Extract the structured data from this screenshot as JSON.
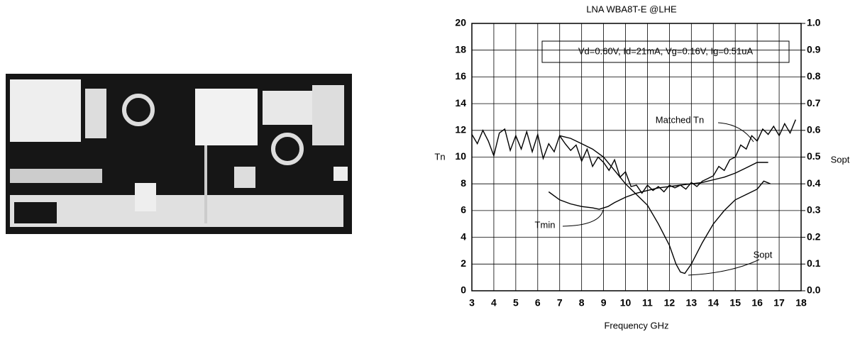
{
  "chart_data": {
    "type": "line",
    "title": "LNA WBA8T-E @LHE",
    "x_label": "Frequency GHz",
    "y_label": "Tn",
    "y2_label": "Sopt",
    "conditions": "Vd=0.60V, Id=21mA, Vg=0.16V, Ig=0.51uA",
    "xlim": [
      3,
      18
    ],
    "xticks": [
      3,
      4,
      5,
      6,
      7,
      8,
      9,
      10,
      11,
      12,
      13,
      14,
      15,
      16,
      17,
      18
    ],
    "ylim": [
      0,
      20
    ],
    "yticks": [
      0,
      2,
      4,
      6,
      8,
      10,
      12,
      14,
      16,
      18,
      20
    ],
    "y2lim": [
      0,
      1
    ],
    "y2ticks": [
      {
        "value": 0,
        "label": "0.0"
      },
      0.1,
      0.2,
      0.3,
      0.4,
      0.5,
      0.6,
      0.7,
      0.8,
      0.9,
      {
        "value": 1,
        "label": "1.0"
      }
    ],
    "grid": true,
    "series": [
      {
        "name": "Matched Tn",
        "color": "#000000",
        "x": [
          3,
          3.25,
          3.5,
          3.75,
          4,
          4.25,
          4.5,
          4.75,
          5,
          5.25,
          5.5,
          5.75,
          6,
          6.25,
          6.5,
          6.75,
          7,
          7.25,
          7.5,
          7.75,
          8,
          8.25,
          8.5,
          8.75,
          9,
          9.25,
          9.5,
          9.75,
          10,
          10.25,
          10.5,
          10.75,
          11,
          11.25,
          11.5,
          11.75,
          12,
          12.25,
          12.5,
          12.75,
          13,
          13.25,
          13.5,
          13.75,
          14,
          14.25,
          14.5,
          14.75,
          15,
          15.25,
          15.5,
          15.75,
          16,
          16.25,
          16.5,
          16.75,
          17,
          17.25,
          17.5,
          17.75
        ],
        "values": [
          11.7,
          11,
          12,
          11.2,
          10.1,
          11.8,
          12.1,
          10.5,
          11.6,
          10.6,
          11.9,
          10.4,
          11.7,
          9.9,
          11,
          10.4,
          11.6,
          11,
          10.5,
          10.9,
          9.7,
          10.6,
          9.3,
          10,
          9.6,
          9,
          9.8,
          8.5,
          8.9,
          7.8,
          7.9,
          7.3,
          7.9,
          7.5,
          7.8,
          7.4,
          7.9,
          7.7,
          7.9,
          7.6,
          8.1,
          7.8,
          8.2,
          8.4,
          8.6,
          9.3,
          9,
          9.8,
          10,
          10.9,
          10.6,
          11.6,
          11.2,
          12.1,
          11.7,
          12.3,
          11.6,
          12.5,
          11.8,
          12.8
        ]
      },
      {
        "name": "Tmin",
        "color": "#000000",
        "x": [
          6.5,
          7,
          7.5,
          8,
          8.5,
          8.8,
          9.2,
          9.5,
          10,
          10.5,
          11,
          11.5,
          12,
          12.5,
          13,
          13.5,
          14,
          14.5,
          15,
          15.5,
          16,
          16.5
        ],
        "values": [
          7.4,
          6.8,
          6.5,
          6.3,
          6.2,
          6.1,
          6.3,
          6.6,
          7,
          7.3,
          7.5,
          7.7,
          7.8,
          7.9,
          8,
          8.1,
          8.3,
          8.5,
          8.8,
          9.2,
          9.6,
          9.6
        ]
      },
      {
        "name": "Sopt",
        "color": "#000000",
        "axis": "y2",
        "x": [
          7,
          7.5,
          8,
          8.5,
          9,
          9.5,
          10,
          10.5,
          11,
          11.5,
          12,
          12.3,
          12.5,
          12.7,
          13,
          13.5,
          14,
          14.5,
          15,
          15.5,
          16,
          16.3,
          16.6
        ],
        "values": [
          0.58,
          0.57,
          0.55,
          0.53,
          0.5,
          0.45,
          0.4,
          0.36,
          0.32,
          0.25,
          0.17,
          0.1,
          0.07,
          0.065,
          0.1,
          0.18,
          0.25,
          0.3,
          0.34,
          0.36,
          0.38,
          0.41,
          0.4
        ]
      }
    ]
  }
}
